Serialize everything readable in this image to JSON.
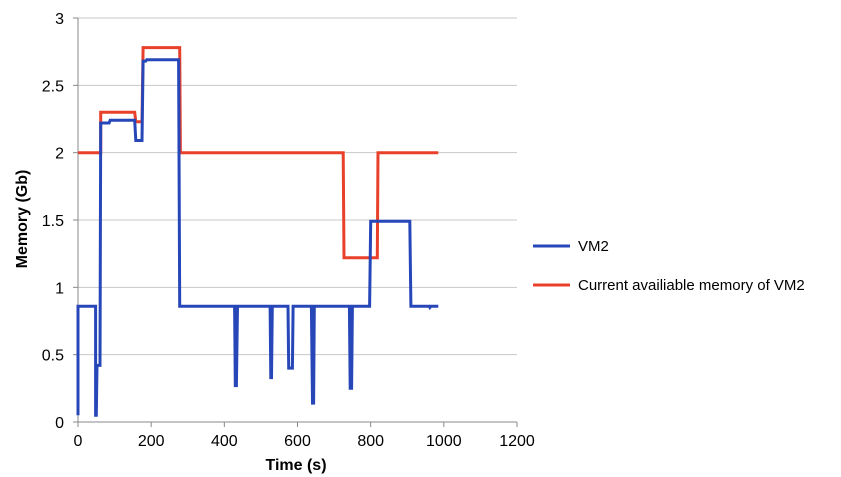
{
  "chart_data": {
    "type": "line",
    "xlabel": "Time (s)",
    "ylabel": "Memory (Gb)",
    "xlim": [
      0,
      1200
    ],
    "ylim": [
      0,
      3
    ],
    "x_ticks": [
      0,
      200,
      400,
      600,
      800,
      1000,
      1200
    ],
    "y_ticks": [
      0,
      0.5,
      1,
      1.5,
      2,
      2.5,
      3
    ],
    "x_tick_labels": [
      "0",
      "200",
      "400",
      "600",
      "800",
      "1000",
      "1200"
    ],
    "y_tick_labels": [
      "0",
      "0.5",
      "1",
      "1.5",
      "2",
      "2.5",
      "3"
    ],
    "grid": "horizontal",
    "legend_position": "right",
    "series": [
      {
        "name": "VM2",
        "color": "#2747B8",
        "points": [
          [
            0,
            0.05
          ],
          [
            0,
            0.86
          ],
          [
            48,
            0.86
          ],
          [
            48,
            0.05
          ],
          [
            50,
            0.05
          ],
          [
            52,
            0.42
          ],
          [
            60,
            0.42
          ],
          [
            62,
            2.22
          ],
          [
            85,
            2.22
          ],
          [
            88,
            2.24
          ],
          [
            155,
            2.24
          ],
          [
            158,
            2.09
          ],
          [
            175,
            2.09
          ],
          [
            178,
            2.68
          ],
          [
            185,
            2.68
          ],
          [
            188,
            2.69
          ],
          [
            275,
            2.69
          ],
          [
            278,
            0.86
          ],
          [
            428,
            0.86
          ],
          [
            430,
            0.27
          ],
          [
            433,
            0.27
          ],
          [
            436,
            0.86
          ],
          [
            525,
            0.86
          ],
          [
            527,
            0.33
          ],
          [
            529,
            0.33
          ],
          [
            531,
            0.86
          ],
          [
            574,
            0.86
          ],
          [
            576,
            0.4
          ],
          [
            586,
            0.4
          ],
          [
            588,
            0.86
          ],
          [
            638,
            0.86
          ],
          [
            641,
            0.14
          ],
          [
            644,
            0.14
          ],
          [
            646,
            0.86
          ],
          [
            742,
            0.86
          ],
          [
            744,
            0.25
          ],
          [
            748,
            0.25
          ],
          [
            750,
            0.86
          ],
          [
            797,
            0.86
          ],
          [
            800,
            1.49
          ],
          [
            907,
            1.49
          ],
          [
            910,
            0.86
          ],
          [
            960,
            0.86
          ],
          [
            962,
            0.85
          ],
          [
            965,
            0.86
          ],
          [
            985,
            0.86
          ]
        ]
      },
      {
        "name": "Current availiable memory of VM2",
        "color": "#E8402A",
        "points": [
          [
            0,
            2.0
          ],
          [
            62,
            2.0
          ],
          [
            62,
            2.3
          ],
          [
            155,
            2.3
          ],
          [
            158,
            2.23
          ],
          [
            175,
            2.23
          ],
          [
            178,
            2.78
          ],
          [
            278,
            2.78
          ],
          [
            280,
            2.0
          ],
          [
            725,
            2.0
          ],
          [
            727,
            1.22
          ],
          [
            818,
            1.22
          ],
          [
            820,
            2.0
          ],
          [
            985,
            2.0
          ]
        ]
      }
    ]
  }
}
